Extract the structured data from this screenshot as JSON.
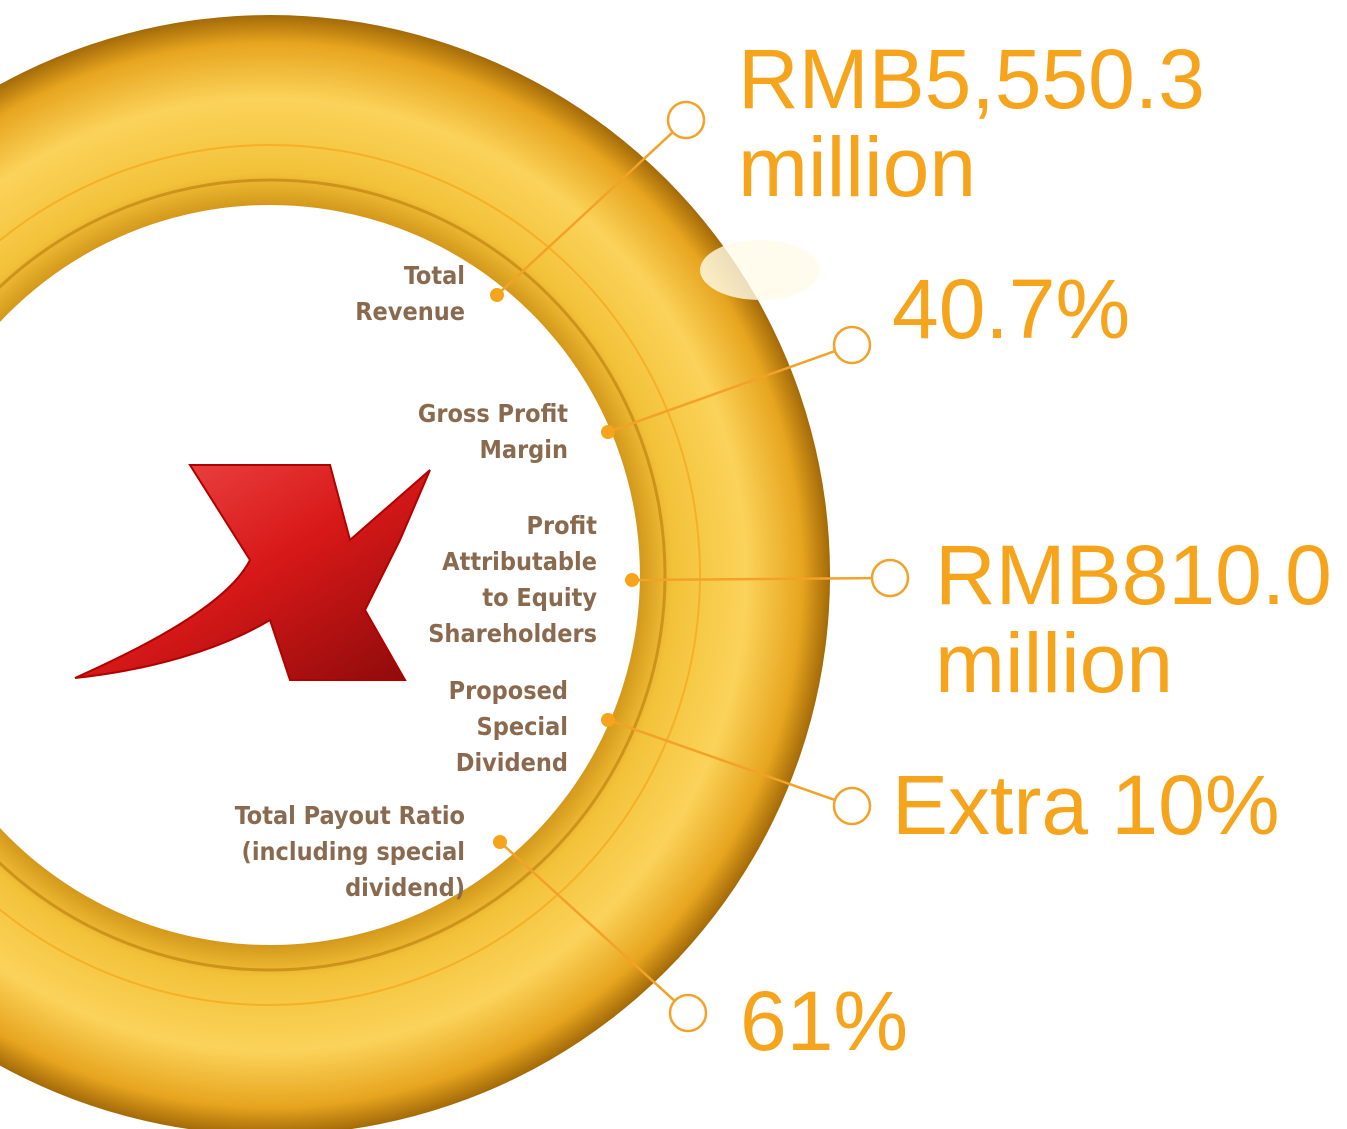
{
  "items": [
    {
      "label": [
        "Total",
        "Revenue"
      ],
      "value": [
        "RMB5,550.3",
        "million"
      ]
    },
    {
      "label": [
        "Gross Profit",
        "Margin"
      ],
      "value": [
        "40.7%"
      ]
    },
    {
      "label": [
        "Profit",
        "Attributable",
        "to Equity",
        "Shareholders"
      ],
      "value": [
        "RMB810.0",
        "million"
      ]
    },
    {
      "label": [
        "Proposed",
        "Special",
        "Dividend"
      ],
      "value": [
        "Extra 10%"
      ]
    },
    {
      "label": [
        "Total Payout Ratio",
        "(including special",
        "dividend)"
      ],
      "value": [
        "61%"
      ]
    }
  ]
}
